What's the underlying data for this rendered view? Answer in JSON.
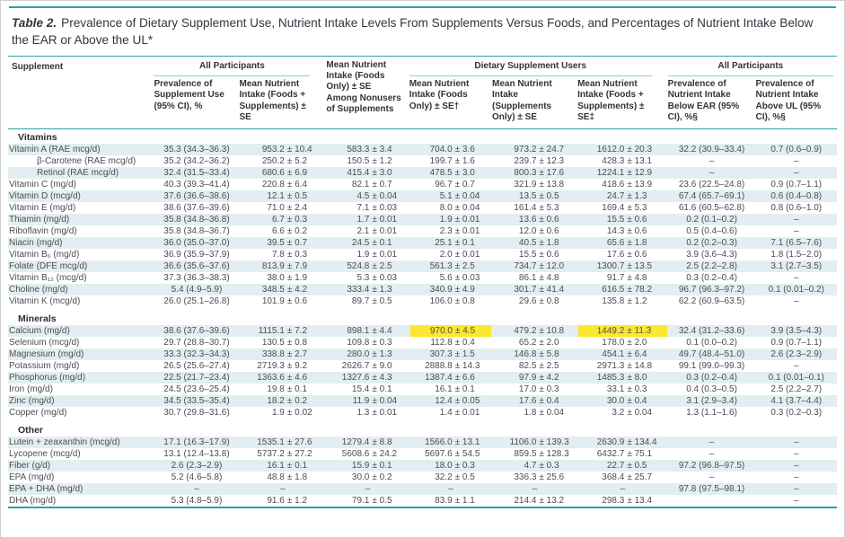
{
  "colors": {
    "rule_teal": "#2f9fa7",
    "rule_light": "#8ecdd0",
    "stripe": "#e2eef1",
    "highlight": "#fbe82e",
    "text_color": "#4d4d4d",
    "title_color": "#34353f"
  },
  "title": {
    "label": "Table 2.",
    "text": "Prevalence of Dietary Supplement Use, Nutrient Intake Levels From Supplements Versus Foods, and Percentages of Nutrient Intake Below the EAR or Above the UL*"
  },
  "table": {
    "supplement_header": "Supplement",
    "nonusers_header": "Mean Nutrient Intake (Foods Only) ± SE Among Nonusers of Supplements",
    "groups": [
      {
        "label": "All Participants",
        "cols": 2
      },
      {
        "label": "Dietary Supplement Users",
        "cols": 3
      },
      {
        "label": "All Participants",
        "cols": 2
      }
    ],
    "columns": [
      "Prevalence of Supplement Use (95% CI), %",
      "Mean Nutrient Intake (Foods + Supplements) ± SE",
      "Mean Nutrient Intake (Foods Only) ± SE†",
      "Mean Nutrient Intake (Supplements Only) ± SE",
      "Mean Nutrient Intake (Foods + Supplements) ± SE‡",
      "Prevalence of Nutrient Intake Below EAR (95% CI), %§",
      "Prevalence of Nutrient Intake Above UL (95% CI), %§"
    ],
    "sections": [
      {
        "name": "Vitamins",
        "rows": [
          {
            "label": "Vitamin A (RAE mcg/d)",
            "indent": false,
            "values": [
              "35.3 (34.3–36.3)",
              "953.2 ± 10.4",
              "583.3 ± 3.4",
              "704.0 ± 3.6",
              "973.2 ± 24.7",
              "1612.0 ± 20.3",
              "32.2 (30.9–33.4)",
              "0.7 (0.6–0.9)"
            ]
          },
          {
            "label": "β-Carotene (RAE mcg/d)",
            "indent": true,
            "values": [
              "35.2 (34.2–36.2)",
              "250.2 ± 5.2",
              "150.5 ± 1.2",
              "199.7 ± 1.6",
              "239.7 ± 12.3",
              "428.3 ± 13.1",
              "–",
              "–"
            ]
          },
          {
            "label": "Retinol (RAE mcg/d)",
            "indent": true,
            "values": [
              "32.4 (31.5–33.4)",
              "680.6 ± 6.9",
              "415.4 ± 3.0",
              "478.5 ± 3.0",
              "800.3 ± 17.6",
              "1224.1 ± 12.9",
              "–",
              "–"
            ]
          },
          {
            "label": "Vitamin C (mg/d)",
            "indent": false,
            "values": [
              "40.3 (39.3–41.4)",
              "220.8 ± 6.4",
              "82.1 ± 0.7",
              "96.7 ± 0.7",
              "321.9 ± 13.8",
              "418.6 ± 13.9",
              "23.6 (22.5–24.8)",
              "0.9 (0.7–1.1)"
            ]
          },
          {
            "label": "Vitamin D (mcg/d)",
            "indent": false,
            "values": [
              "37.6 (36.6–38.6)",
              "12.1 ± 0.5",
              "4.5 ± 0.04",
              "5.1 ± 0.04",
              "13.5 ± 0.5",
              "24.7 ± 1.3",
              "67.4 (65.7–69.1)",
              "0.6 (0.4–0.8)"
            ]
          },
          {
            "label": "Vitamin E (mg/d)",
            "indent": false,
            "values": [
              "38.6 (37.6–39.6)",
              "71.0 ± 2.4",
              "7.1 ± 0.03",
              "8.0 ± 0.04",
              "161.4 ± 5.3",
              "169.4 ± 5.3",
              "61.6 (60.5–62.8)",
              "0.8 (0.6–1.0)"
            ]
          },
          {
            "label": "Thiamin (mg/d)",
            "indent": false,
            "values": [
              "35.8 (34.8–36.8)",
              "6.7 ± 0.3",
              "1.7 ± 0.01",
              "1.9 ± 0.01",
              "13.6 ± 0.6",
              "15.5 ± 0.6",
              "0.2 (0.1–0.2)",
              "–"
            ]
          },
          {
            "label": "Riboflavin (mg/d)",
            "indent": false,
            "values": [
              "35.8 (34.8–36.7)",
              "6.6 ± 0.2",
              "2.1 ± 0.01",
              "2.3 ± 0.01",
              "12.0 ± 0.6",
              "14.3 ± 0.6",
              "0.5 (0.4–0.6)",
              "–"
            ]
          },
          {
            "label": "Niacin (mg/d)",
            "indent": false,
            "values": [
              "36.0 (35.0–37.0)",
              "39.5 ± 0.7",
              "24.5 ± 0.1",
              "25.1 ± 0.1",
              "40.5 ± 1.8",
              "65.6 ± 1.8",
              "0.2 (0.2–0.3)",
              "7.1 (6.5–7.6)"
            ]
          },
          {
            "label": "Vitamin B₆ (mg/d)",
            "indent": false,
            "values": [
              "36.9 (35.9–37.9)",
              "7.8 ± 0.3",
              "1.9 ± 0.01",
              "2.0 ± 0.01",
              "15.5 ± 0.6",
              "17.6 ± 0.6",
              "3.9 (3.6–4.3)",
              "1.8 (1.5–2.0)"
            ]
          },
          {
            "label": "Folate (DFE mcg/d)",
            "indent": false,
            "values": [
              "36.6 (35.6–37.6)",
              "813.9 ± 7.9",
              "524.8 ± 2.5",
              "561.3 ± 2.5",
              "734.7 ± 12.0",
              "1300.7 ± 13.5",
              "2.5 (2.2–2.8)",
              "3.1 (2.7–3.5)"
            ]
          },
          {
            "label": "Vitamin B₁₂ (mcg/d)",
            "indent": false,
            "values": [
              "37.3 (36.3–38.3)",
              "38.0 ± 1.9",
              "5.3 ± 0.03",
              "5.6 ± 0.03",
              "86.1 ± 4.8",
              "91.7 ± 4.8",
              "0.3 (0.2–0.4)",
              "–"
            ]
          },
          {
            "label": "Choline (mg/d)",
            "indent": false,
            "values": [
              "5.4 (4.9–5.9)",
              "348.5 ± 4.2",
              "333.4 ± 1.3",
              "340.9 ± 4.9",
              "301.7 ± 41.4",
              "616.5 ± 78.2",
              "96.7 (96.3–97.2)",
              "0.1 (0.01–0.2)"
            ]
          },
          {
            "label": "Vitamin K (mcg/d)",
            "indent": false,
            "values": [
              "26.0 (25.1–26.8)",
              "101.9 ± 0.6",
              "89.7 ± 0.5",
              "106.0 ± 0.8",
              "29.6 ± 0.8",
              "135.8 ± 1.2",
              "62.2 (60.9–63.5)",
              "–"
            ]
          }
        ]
      },
      {
        "name": "Minerals",
        "rows": [
          {
            "label": "Calcium (mg/d)",
            "indent": false,
            "highlight": [
              3,
              5
            ],
            "values": [
              "38.6 (37.6–39.6)",
              "1115.1 ± 7.2",
              "898.1 ± 4.4",
              "970.0 ± 4.5",
              "479.2 ± 10.8",
              "1449.2 ± 11.3",
              "32.4 (31.2–33.6)",
              "3.9 (3.5–4.3)"
            ]
          },
          {
            "label": "Selenium (mcg/d)",
            "indent": false,
            "values": [
              "29.7 (28.8–30.7)",
              "130.5 ± 0.8",
              "109.8 ± 0.3",
              "112.8 ± 0.4",
              "65.2 ± 2.0",
              "178.0 ± 2.0",
              "0.1 (0.0–0.2)",
              "0.9 (0.7–1.1)"
            ]
          },
          {
            "label": "Magnesium (mg/d)",
            "indent": false,
            "values": [
              "33.3 (32.3–34.3)",
              "338.8 ± 2.7",
              "280.0 ± 1.3",
              "307.3 ± 1.5",
              "146.8 ± 5.8",
              "454.1 ± 6.4",
              "49.7 (48.4–51.0)",
              "2.6 (2.3–2.9)"
            ]
          },
          {
            "label": "Potassium (mg/d)",
            "indent": false,
            "values": [
              "26.5 (25.6–27.4)",
              "2719.3 ± 9.2",
              "2626.7 ± 9.0",
              "2888.8 ± 14.3",
              "82.5 ± 2.5",
              "2971.3 ± 14.8",
              "99.1 (99.0–99.3)",
              "–"
            ]
          },
          {
            "label": "Phosphorus (mg/d)",
            "indent": false,
            "values": [
              "22.5 (21.7–23.4)",
              "1363.6 ± 4.6",
              "1327.6 ± 4.3",
              "1387.4 ± 6.6",
              "97.9 ± 4.2",
              "1485.3 ± 8.0",
              "0.3 (0.2–0.4)",
              "0.1 (0.01–0.1)"
            ]
          },
          {
            "label": "Iron (mg/d)",
            "indent": false,
            "values": [
              "24.5 (23.6–25.4)",
              "19.8 ± 0.1",
              "15.4 ± 0.1",
              "16.1 ± 0.1",
              "17.0 ± 0.3",
              "33.1 ± 0.3",
              "0.4 (0.3–0.5)",
              "2.5 (2.2–2.7)"
            ]
          },
          {
            "label": "Zinc (mg/d)",
            "indent": false,
            "values": [
              "34.5 (33.5–35.4)",
              "18.2 ± 0.2",
              "11.9 ± 0.04",
              "12.4 ± 0.05",
              "17.6 ± 0.4",
              "30.0 ± 0.4",
              "3.1 (2.9–3.4)",
              "4.1 (3.7–4.4)"
            ]
          },
          {
            "label": "Copper (mg/d)",
            "indent": false,
            "values": [
              "30.7 (29.8–31.6)",
              "1.9 ± 0.02",
              "1.3 ± 0.01",
              "1.4 ± 0.01",
              "1.8 ± 0.04",
              "3.2 ± 0.04",
              "1.3 (1.1–1.6)",
              "0.3 (0.2–0.3)"
            ]
          }
        ]
      },
      {
        "name": "Other",
        "rows": [
          {
            "label": "Lutein + zeaxanthin (mcg/d)",
            "indent": false,
            "values": [
              "17.1 (16.3–17.9)",
              "1535.1 ± 27.6",
              "1279.4 ± 8.8",
              "1566.0 ± 13.1",
              "1106.0 ± 139.3",
              "2630.9 ± 134.4",
              "–",
              "–"
            ]
          },
          {
            "label": "Lycopene (mcg/d)",
            "indent": false,
            "values": [
              "13.1 (12.4–13.8)",
              "5737.2 ± 27.2",
              "5608.6 ± 24.2",
              "5697.6 ± 54.5",
              "859.5 ± 128.3",
              "6432.7 ± 75.1",
              "–",
              "–"
            ]
          },
          {
            "label": "Fiber (g/d)",
            "indent": false,
            "values": [
              "2.6 (2.3–2.9)",
              "16.1 ± 0.1",
              "15.9 ± 0.1",
              "18.0 ± 0.3",
              "4.7 ± 0.3",
              "22.7 ± 0.5",
              "97.2 (96.8–97.5)",
              "–"
            ]
          },
          {
            "label": "EPA (mg/d)",
            "indent": false,
            "values": [
              "5.2 (4.6–5.8)",
              "48.8 ± 1.8",
              "30.0 ± 0.2",
              "32.2 ± 0.5",
              "336.3 ± 25.6",
              "368.4 ± 25.7",
              "–",
              "–"
            ]
          },
          {
            "label": "EPA + DHA (mg/d)",
            "indent": false,
            "values": [
              "–",
              "–",
              "–",
              "–",
              "–",
              "–",
              "97.8 (97.5–98.1)",
              "–"
            ]
          },
          {
            "label": "DHA (mg/d)",
            "indent": false,
            "values": [
              "5.3 (4.8–5.9)",
              "91.6 ± 1.2",
              "79.1 ± 0.5",
              "83.9 ± 1.1",
              "214.4 ± 13.2",
              "298.3 ± 13.4",
              "",
              "–"
            ]
          }
        ]
      }
    ]
  }
}
